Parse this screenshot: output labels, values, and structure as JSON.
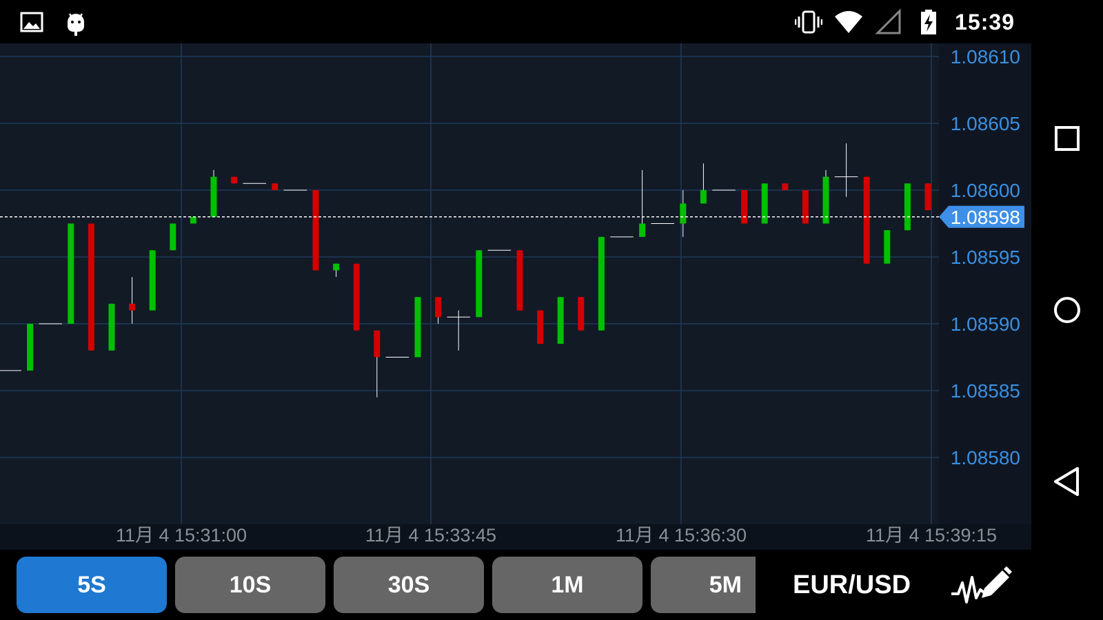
{
  "status_bar": {
    "time": "15:39",
    "left_icons": [
      "image-icon",
      "android-icon"
    ],
    "right_icons": [
      "vibrate-icon",
      "wifi-icon",
      "cell-signal-icon",
      "battery-charging-icon"
    ]
  },
  "chart_data": {
    "type": "candlestick",
    "title": "",
    "symbol": "EUR/USD",
    "interval": "5S",
    "ylim": [
      1.08575,
      1.08612
    ],
    "y_ticks": [
      "1.08610",
      "1.08605",
      "1.08600",
      "1.08595",
      "1.08590",
      "1.08585",
      "1.08580"
    ],
    "x_tick_labels": [
      "11月 4 15:31:00",
      "11月 4 15:33:45",
      "11月 4 15:36:30",
      "11月 4 15:39:15"
    ],
    "current_price": "1.08598",
    "current_price_value": 1.08598,
    "grid": true,
    "candles": [
      {
        "o": 1.085865,
        "h": 1.085865,
        "l": 1.085865,
        "c": 1.085865,
        "dir": "flat"
      },
      {
        "o": 1.085865,
        "h": 1.0859,
        "l": 1.085865,
        "c": 1.0859,
        "dir": "up"
      },
      {
        "o": 1.0859,
        "h": 1.0859,
        "l": 1.0859,
        "c": 1.0859,
        "dir": "flat"
      },
      {
        "o": 1.0859,
        "h": 1.085975,
        "l": 1.0859,
        "c": 1.085975,
        "dir": "up"
      },
      {
        "o": 1.085975,
        "h": 1.085975,
        "l": 1.08588,
        "c": 1.08588,
        "dir": "down"
      },
      {
        "o": 1.08588,
        "h": 1.085915,
        "l": 1.08588,
        "c": 1.085915,
        "dir": "up"
      },
      {
        "o": 1.085915,
        "h": 1.085935,
        "l": 1.0859,
        "c": 1.08591,
        "dir": "down"
      },
      {
        "o": 1.08591,
        "h": 1.085955,
        "l": 1.08591,
        "c": 1.085955,
        "dir": "up"
      },
      {
        "o": 1.085955,
        "h": 1.085975,
        "l": 1.085955,
        "c": 1.085975,
        "dir": "up"
      },
      {
        "o": 1.085975,
        "h": 1.08598,
        "l": 1.085975,
        "c": 1.08598,
        "dir": "up"
      },
      {
        "o": 1.08598,
        "h": 1.086015,
        "l": 1.08598,
        "c": 1.08601,
        "dir": "up"
      },
      {
        "o": 1.08601,
        "h": 1.08601,
        "l": 1.086005,
        "c": 1.086005,
        "dir": "down"
      },
      {
        "o": 1.086005,
        "h": 1.086005,
        "l": 1.086005,
        "c": 1.086005,
        "dir": "flat"
      },
      {
        "o": 1.086005,
        "h": 1.086005,
        "l": 1.086,
        "c": 1.086,
        "dir": "down"
      },
      {
        "o": 1.086,
        "h": 1.086,
        "l": 1.086,
        "c": 1.086,
        "dir": "flat"
      },
      {
        "o": 1.086,
        "h": 1.086,
        "l": 1.08594,
        "c": 1.08594,
        "dir": "down"
      },
      {
        "o": 1.08594,
        "h": 1.085945,
        "l": 1.085935,
        "c": 1.085945,
        "dir": "up"
      },
      {
        "o": 1.085945,
        "h": 1.085945,
        "l": 1.085895,
        "c": 1.085895,
        "dir": "down"
      },
      {
        "o": 1.085895,
        "h": 1.085895,
        "l": 1.085845,
        "c": 1.085875,
        "dir": "down"
      },
      {
        "o": 1.085875,
        "h": 1.085875,
        "l": 1.085875,
        "c": 1.085875,
        "dir": "flat"
      },
      {
        "o": 1.085875,
        "h": 1.08592,
        "l": 1.085875,
        "c": 1.08592,
        "dir": "up"
      },
      {
        "o": 1.08592,
        "h": 1.08592,
        "l": 1.0859,
        "c": 1.085905,
        "dir": "down"
      },
      {
        "o": 1.085905,
        "h": 1.08591,
        "l": 1.08588,
        "c": 1.085905,
        "dir": "flat"
      },
      {
        "o": 1.085905,
        "h": 1.085955,
        "l": 1.085905,
        "c": 1.085955,
        "dir": "up"
      },
      {
        "o": 1.085955,
        "h": 1.085955,
        "l": 1.085955,
        "c": 1.085955,
        "dir": "flat"
      },
      {
        "o": 1.085955,
        "h": 1.085955,
        "l": 1.08591,
        "c": 1.08591,
        "dir": "down"
      },
      {
        "o": 1.08591,
        "h": 1.08591,
        "l": 1.085885,
        "c": 1.085885,
        "dir": "down"
      },
      {
        "o": 1.085885,
        "h": 1.08592,
        "l": 1.085885,
        "c": 1.08592,
        "dir": "up"
      },
      {
        "o": 1.08592,
        "h": 1.08592,
        "l": 1.085895,
        "c": 1.085895,
        "dir": "down"
      },
      {
        "o": 1.085895,
        "h": 1.085965,
        "l": 1.085895,
        "c": 1.085965,
        "dir": "up"
      },
      {
        "o": 1.085965,
        "h": 1.085965,
        "l": 1.085965,
        "c": 1.085965,
        "dir": "flat"
      },
      {
        "o": 1.085965,
        "h": 1.086015,
        "l": 1.085965,
        "c": 1.085975,
        "dir": "up"
      },
      {
        "o": 1.085975,
        "h": 1.085975,
        "l": 1.085975,
        "c": 1.085975,
        "dir": "flat"
      },
      {
        "o": 1.085975,
        "h": 1.086,
        "l": 1.085965,
        "c": 1.08599,
        "dir": "up"
      },
      {
        "o": 1.08599,
        "h": 1.08602,
        "l": 1.08599,
        "c": 1.086,
        "dir": "up"
      },
      {
        "o": 1.086,
        "h": 1.086,
        "l": 1.086,
        "c": 1.086,
        "dir": "flat"
      },
      {
        "o": 1.086,
        "h": 1.086,
        "l": 1.085975,
        "c": 1.085975,
        "dir": "down"
      },
      {
        "o": 1.085975,
        "h": 1.086005,
        "l": 1.085975,
        "c": 1.086005,
        "dir": "up"
      },
      {
        "o": 1.086005,
        "h": 1.086005,
        "l": 1.086,
        "c": 1.086,
        "dir": "down"
      },
      {
        "o": 1.086,
        "h": 1.086,
        "l": 1.085975,
        "c": 1.085975,
        "dir": "down"
      },
      {
        "o": 1.085975,
        "h": 1.086015,
        "l": 1.085975,
        "c": 1.08601,
        "dir": "up"
      },
      {
        "o": 1.08601,
        "h": 1.086035,
        "l": 1.085995,
        "c": 1.08601,
        "dir": "flat"
      },
      {
        "o": 1.08601,
        "h": 1.08601,
        "l": 1.085945,
        "c": 1.085945,
        "dir": "down"
      },
      {
        "o": 1.085945,
        "h": 1.08597,
        "l": 1.085945,
        "c": 1.08597,
        "dir": "up"
      },
      {
        "o": 1.08597,
        "h": 1.086005,
        "l": 1.08597,
        "c": 1.086005,
        "dir": "up"
      },
      {
        "o": 1.086005,
        "h": 1.086005,
        "l": 1.085985,
        "c": 1.085985,
        "dir": "down"
      }
    ]
  },
  "timeframes": [
    {
      "label": "5S",
      "active": true
    },
    {
      "label": "10S",
      "active": false
    },
    {
      "label": "30S",
      "active": false
    },
    {
      "label": "1M",
      "active": false
    },
    {
      "label": "5M",
      "active": false
    }
  ],
  "pair": "EUR/USD",
  "indicator_icon": "chart-pencil-icon",
  "nav": [
    "recent-apps-icon",
    "home-icon",
    "back-icon"
  ],
  "colors": {
    "background": "#121a26",
    "grid": "#1e3a5c",
    "up": "#00c000",
    "down": "#d40000",
    "axis_text": "#3a8fe0",
    "price_tag": "#3d8fe8",
    "active_button": "#1f78d1",
    "button": "#666666"
  }
}
